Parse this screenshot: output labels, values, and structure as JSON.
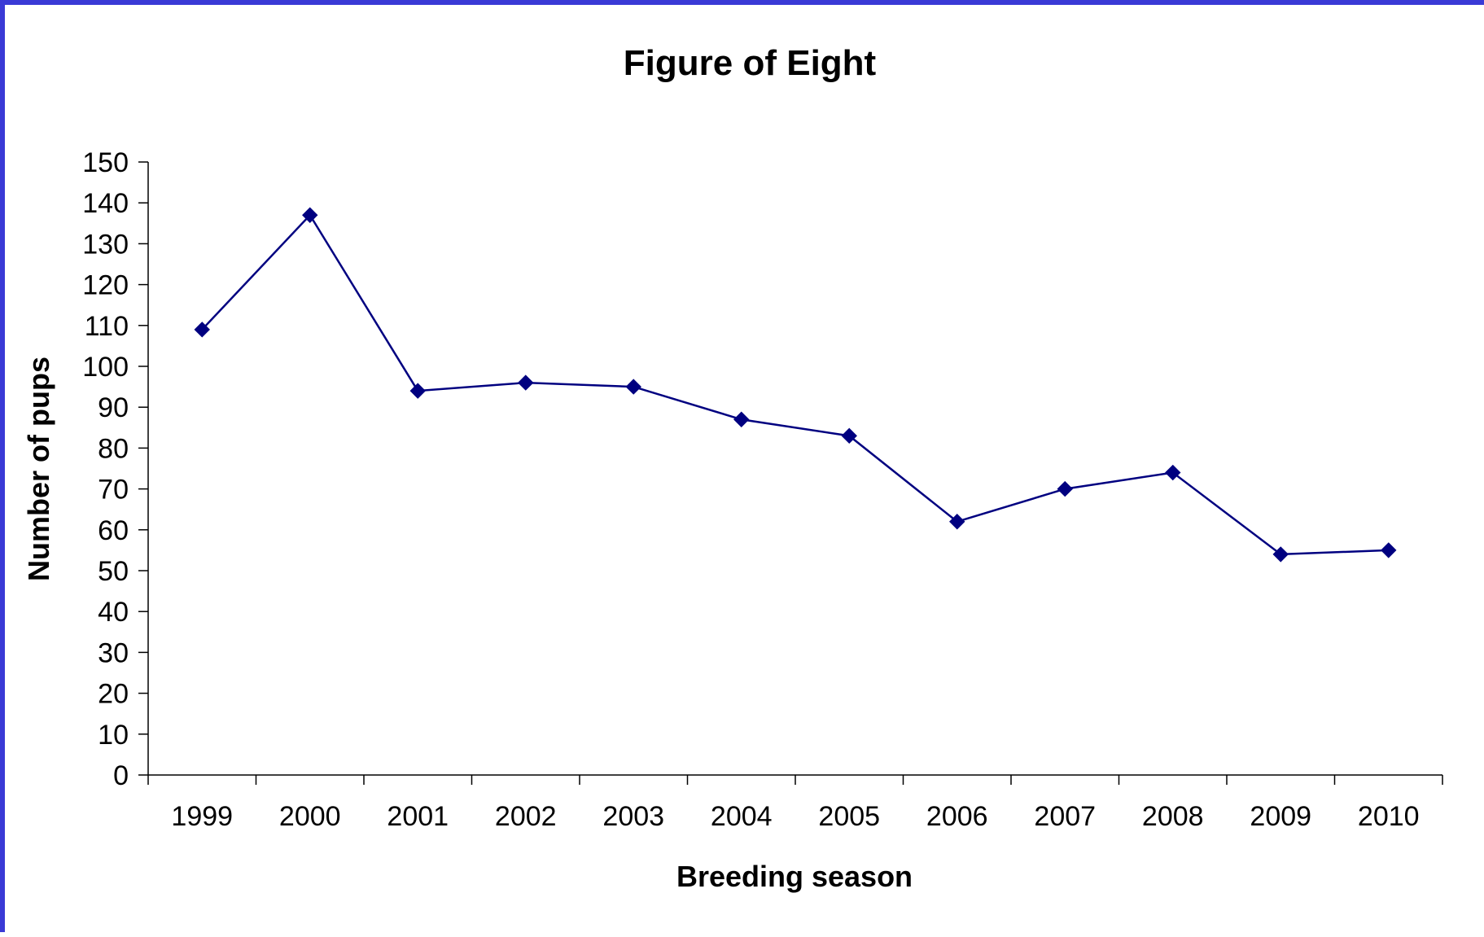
{
  "chart_data": {
    "type": "line",
    "title": "Figure of Eight",
    "xlabel": "Breeding season",
    "ylabel": "Number of pups",
    "ylim": [
      0,
      150
    ],
    "yticks": [
      0,
      10,
      20,
      30,
      40,
      50,
      60,
      70,
      80,
      90,
      100,
      110,
      120,
      130,
      140,
      150
    ],
    "categories": [
      "1999",
      "2000",
      "2001",
      "2002",
      "2003",
      "2004",
      "2005",
      "2006",
      "2007",
      "2008",
      "2009",
      "2010"
    ],
    "series": [
      {
        "values": [
          109,
          137,
          94,
          96,
          95,
          87,
          83,
          62,
          70,
          74,
          54,
          55
        ],
        "color": "#000080",
        "marker": "diamond"
      }
    ],
    "grid": false,
    "legend": "none"
  }
}
